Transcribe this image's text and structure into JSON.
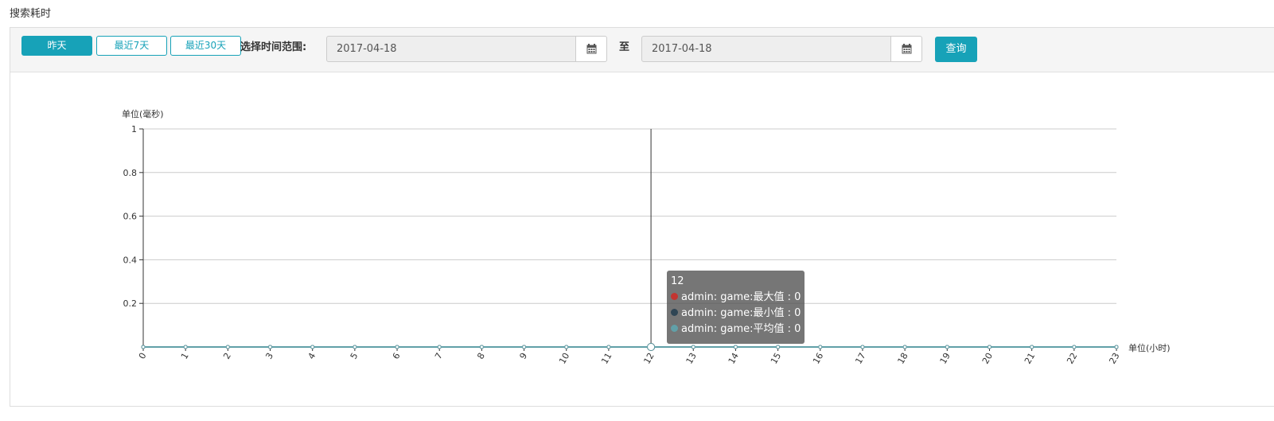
{
  "page": {
    "title": "搜索耗时"
  },
  "toolbar": {
    "yesterday_label": "昨天",
    "last7_label": "最近7天",
    "last30_label": "最近30天",
    "range_label": "选择时间范围:",
    "start_date": "2017-04-18",
    "to_label": "至",
    "end_date": "2017-04-18",
    "query_label": "查询",
    "calendar_icon": "calendar-icon"
  },
  "colors": {
    "accent": "#17a2b8",
    "series_max": "#c23531",
    "series_min": "#2f4554",
    "series_avg": "#61a0a8"
  },
  "chart_data": {
    "type": "line",
    "ylabel": "单位(毫秒)",
    "xlabel": "单位(小时)",
    "ylim": [
      0,
      1
    ],
    "y_ticks": [
      "0.2",
      "0.4",
      "0.6",
      "0.8",
      "1"
    ],
    "x": [
      "0",
      "1",
      "2",
      "3",
      "4",
      "5",
      "6",
      "7",
      "8",
      "9",
      "10",
      "11",
      "12",
      "13",
      "14",
      "15",
      "16",
      "17",
      "18",
      "19",
      "20",
      "21",
      "22",
      "23"
    ],
    "series": [
      {
        "name": "admin: game:最大值",
        "color": "#c23531",
        "values": [
          0,
          0,
          0,
          0,
          0,
          0,
          0,
          0,
          0,
          0,
          0,
          0,
          0,
          0,
          0,
          0,
          0,
          0,
          0,
          0,
          0,
          0,
          0,
          0
        ]
      },
      {
        "name": "admin: game:最小值",
        "color": "#2f4554",
        "values": [
          0,
          0,
          0,
          0,
          0,
          0,
          0,
          0,
          0,
          0,
          0,
          0,
          0,
          0,
          0,
          0,
          0,
          0,
          0,
          0,
          0,
          0,
          0,
          0
        ]
      },
      {
        "name": "admin: game:平均值",
        "color": "#61a0a8",
        "values": [
          0,
          0,
          0,
          0,
          0,
          0,
          0,
          0,
          0,
          0,
          0,
          0,
          0,
          0,
          0,
          0,
          0,
          0,
          0,
          0,
          0,
          0,
          0,
          0
        ]
      }
    ],
    "grid": true,
    "tooltip": {
      "x_label": "12",
      "rows": [
        {
          "label": "admin: game:最大值 : 0"
        },
        {
          "label": "admin: game:最小值 : 0"
        },
        {
          "label": "admin: game:平均值 : 0"
        }
      ]
    }
  }
}
